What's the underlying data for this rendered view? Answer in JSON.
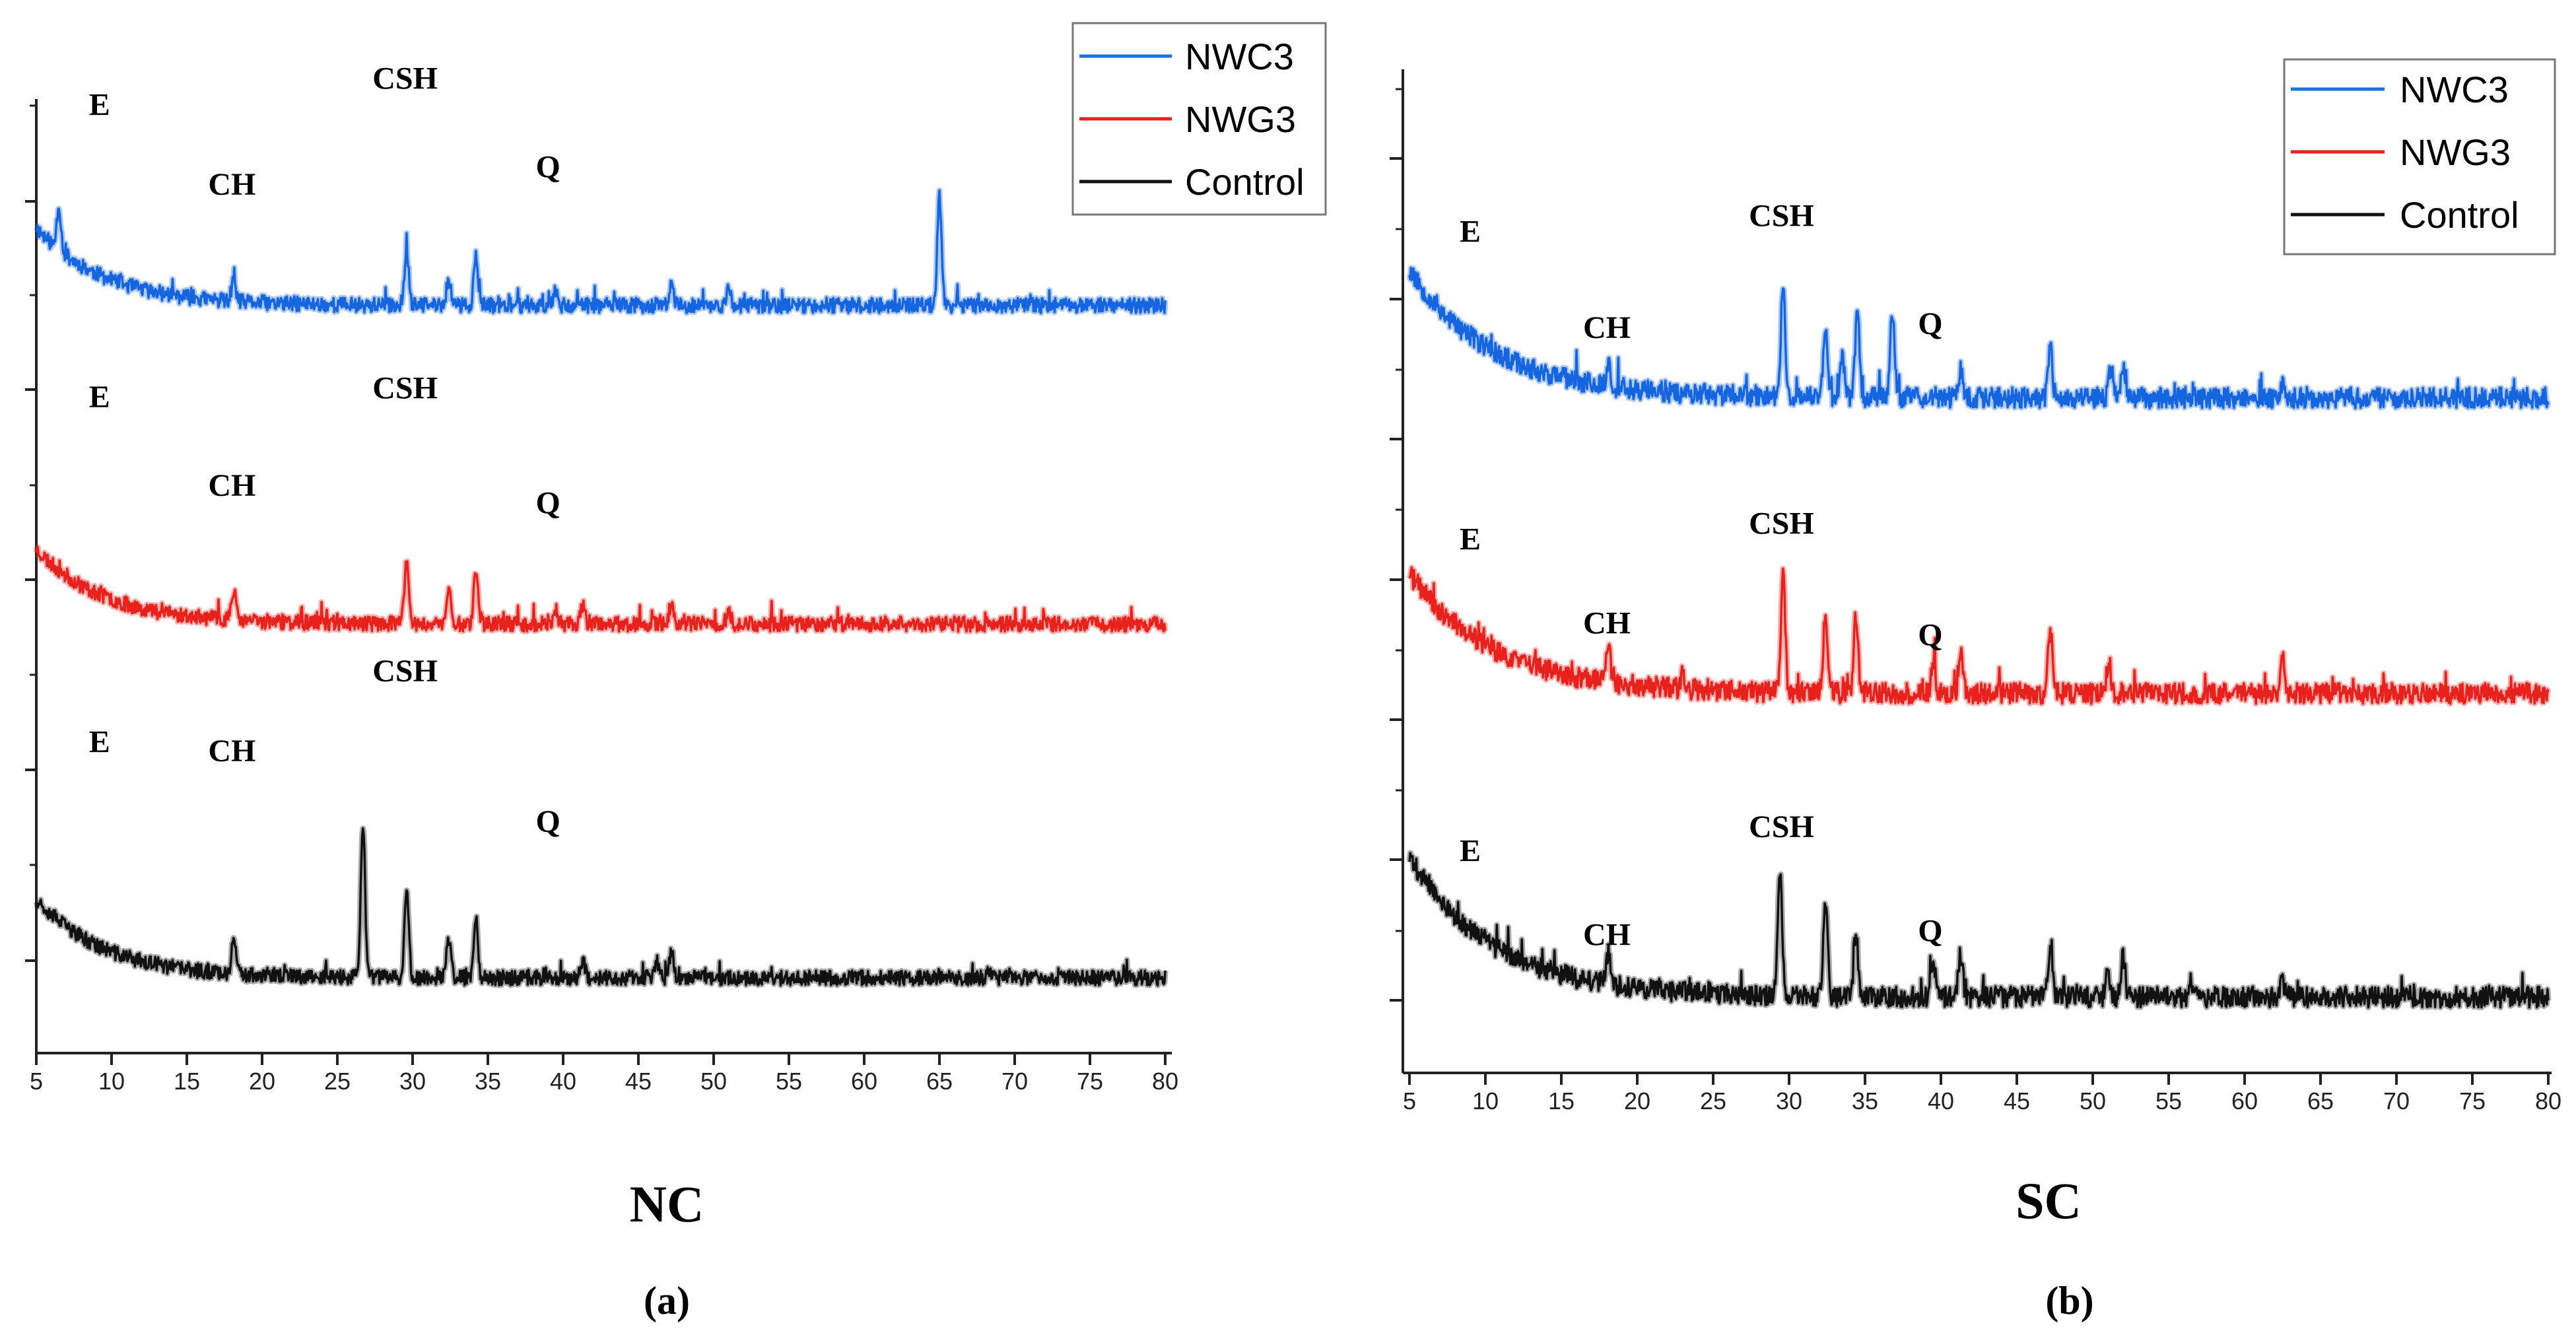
{
  "chart_data": [
    {
      "id": "a",
      "type": "line",
      "title": "NC",
      "caption": "(a)",
      "xlabel": "",
      "ylabel": "",
      "xlim": [
        5,
        80
      ],
      "xticks": [
        "5",
        "10",
        "15",
        "20",
        "25",
        "30",
        "35",
        "40",
        "45",
        "50",
        "55",
        "60",
        "65",
        "70",
        "75",
        "80"
      ],
      "legend": {
        "position": "top-right",
        "entries": [
          {
            "name": "NWC3",
            "color": "#1e6fe0"
          },
          {
            "name": "NWG3",
            "color": "#e8211d"
          },
          {
            "name": "Control",
            "color": "#111111"
          }
        ]
      },
      "series": [
        {
          "name": "NWC3",
          "color": "#1565e0",
          "seed": 11,
          "base": 8.45,
          "amp": 0.88,
          "decay": 4.5,
          "noise": 0.085,
          "peaks": [
            [
              6.5,
              0.5
            ],
            [
              18.1,
              0.22
            ],
            [
              29.6,
              0.65
            ],
            [
              32.4,
              0.3
            ],
            [
              34.2,
              0.5
            ],
            [
              39.5,
              0.2
            ],
            [
              47.2,
              0.25
            ],
            [
              51,
              0.18
            ],
            [
              65,
              1.25
            ]
          ]
        },
        {
          "name": "NWG3",
          "color": "#e8211d",
          "seed": 23,
          "base": 4.85,
          "amp": 0.85,
          "decay": 4.5,
          "noise": 0.085,
          "peaks": [
            [
              18.1,
              0.35
            ],
            [
              29.6,
              0.72
            ],
            [
              32.4,
              0.4
            ],
            [
              34.2,
              0.62
            ],
            [
              39.5,
              0.15
            ],
            [
              41.3,
              0.2
            ],
            [
              47.2,
              0.25
            ],
            [
              51,
              0.15
            ]
          ]
        },
        {
          "name": "Control",
          "color": "#111111",
          "seed": 37,
          "base": 0.85,
          "amp": 0.9,
          "decay": 4.5,
          "noise": 0.085,
          "peaks": [
            [
              18.1,
              0.4
            ],
            [
              26.7,
              1.75
            ],
            [
              29.6,
              1.0
            ],
            [
              32.4,
              0.45
            ],
            [
              34.2,
              0.7
            ],
            [
              41.3,
              0.2
            ],
            [
              46.2,
              0.18
            ],
            [
              47.2,
              0.3
            ],
            [
              68.3,
              0.1
            ]
          ]
        }
      ],
      "annotations": [
        {
          "label": "E",
          "x": 9.2,
          "y": 10.6
        },
        {
          "label": "CH",
          "x": 18,
          "y": 9.7
        },
        {
          "label": "CSH",
          "x": 29.5,
          "y": 10.9
        },
        {
          "label": "Q",
          "x": 39,
          "y": 9.9
        },
        {
          "label": "E",
          "x": 9.2,
          "y": 7.3
        },
        {
          "label": "CH",
          "x": 18,
          "y": 6.3
        },
        {
          "label": "CSH",
          "x": 29.5,
          "y": 7.4
        },
        {
          "label": "Q",
          "x": 39,
          "y": 6.1
        },
        {
          "label": "E",
          "x": 9.2,
          "y": 3.4
        },
        {
          "label": "CH",
          "x": 18,
          "y": 3.3
        },
        {
          "label": "CSH",
          "x": 29.5,
          "y": 4.2
        },
        {
          "label": "Q",
          "x": 39,
          "y": 2.5
        }
      ]
    },
    {
      "id": "b",
      "type": "line",
      "title": "SC",
      "caption": "(b)",
      "xlabel": "",
      "ylabel": "",
      "xlim": [
        5,
        80
      ],
      "xticks": [
        "5",
        "10",
        "15",
        "20",
        "25",
        "30",
        "35",
        "40",
        "45",
        "50",
        "55",
        "60",
        "65",
        "70",
        "75",
        "80"
      ],
      "legend": {
        "position": "top-right",
        "entries": [
          {
            "name": "NWC3",
            "color": "#1e6fe0"
          },
          {
            "name": "NWG3",
            "color": "#e8211d"
          },
          {
            "name": "Control",
            "color": "#111111"
          }
        ]
      },
      "series": [
        {
          "name": "NWC3",
          "color": "#1565e0",
          "seed": 53,
          "base": 8.45,
          "amp": 1.6,
          "decay": 5.5,
          "noise": 0.13,
          "peaks": [
            [
              18.1,
              0.3
            ],
            [
              29.6,
              1.4
            ],
            [
              32.4,
              0.9
            ],
            [
              33.5,
              0.5
            ],
            [
              34.5,
              1.1
            ],
            [
              36.8,
              1.1
            ],
            [
              41.3,
              0.35
            ],
            [
              47.2,
              0.6
            ],
            [
              51.2,
              0.35
            ],
            [
              52,
              0.35
            ],
            [
              62.5,
              0.2
            ]
          ]
        },
        {
          "name": "NWG3",
          "color": "#e8211d",
          "seed": 71,
          "base": 4.75,
          "amp": 1.5,
          "decay": 5.5,
          "noise": 0.13,
          "peaks": [
            [
              18.1,
              0.45
            ],
            [
              23,
              0.2
            ],
            [
              29.6,
              1.5
            ],
            [
              32.4,
              1.0
            ],
            [
              34.4,
              1.0
            ],
            [
              39.5,
              0.4
            ],
            [
              41.3,
              0.5
            ],
            [
              47.2,
              0.8
            ],
            [
              51,
              0.3
            ],
            [
              62.5,
              0.45
            ]
          ]
        },
        {
          "name": "Control",
          "color": "#111111",
          "seed": 89,
          "base": 0.95,
          "amp": 1.75,
          "decay": 5.5,
          "noise": 0.13,
          "peaks": [
            [
              18.1,
              0.4
            ],
            [
              29.4,
              1.6
            ],
            [
              32.4,
              1.2
            ],
            [
              34.4,
              0.8
            ],
            [
              39.5,
              0.45
            ],
            [
              41.3,
              0.55
            ],
            [
              47.2,
              0.55
            ],
            [
              51,
              0.3
            ],
            [
              52,
              0.5
            ],
            [
              56.5,
              0.2
            ],
            [
              62.5,
              0.2
            ]
          ]
        }
      ],
      "annotations": [
        {
          "label": "E",
          "x": 9,
          "y": 10.4
        },
        {
          "label": "CH",
          "x": 18,
          "y": 9.2
        },
        {
          "label": "CSH",
          "x": 29.5,
          "y": 10.6
        },
        {
          "label": "Q",
          "x": 39.3,
          "y": 9.25
        },
        {
          "label": "E",
          "x": 9,
          "y": 6.55
        },
        {
          "label": "CH",
          "x": 18,
          "y": 5.5
        },
        {
          "label": "CSH",
          "x": 29.5,
          "y": 6.75
        },
        {
          "label": "Q",
          "x": 39.3,
          "y": 5.35
        },
        {
          "label": "E",
          "x": 9,
          "y": 2.65
        },
        {
          "label": "CH",
          "x": 18,
          "y": 1.6
        },
        {
          "label": "CSH",
          "x": 29.5,
          "y": 2.95
        },
        {
          "label": "Q",
          "x": 39.3,
          "y": 1.65
        }
      ]
    }
  ]
}
